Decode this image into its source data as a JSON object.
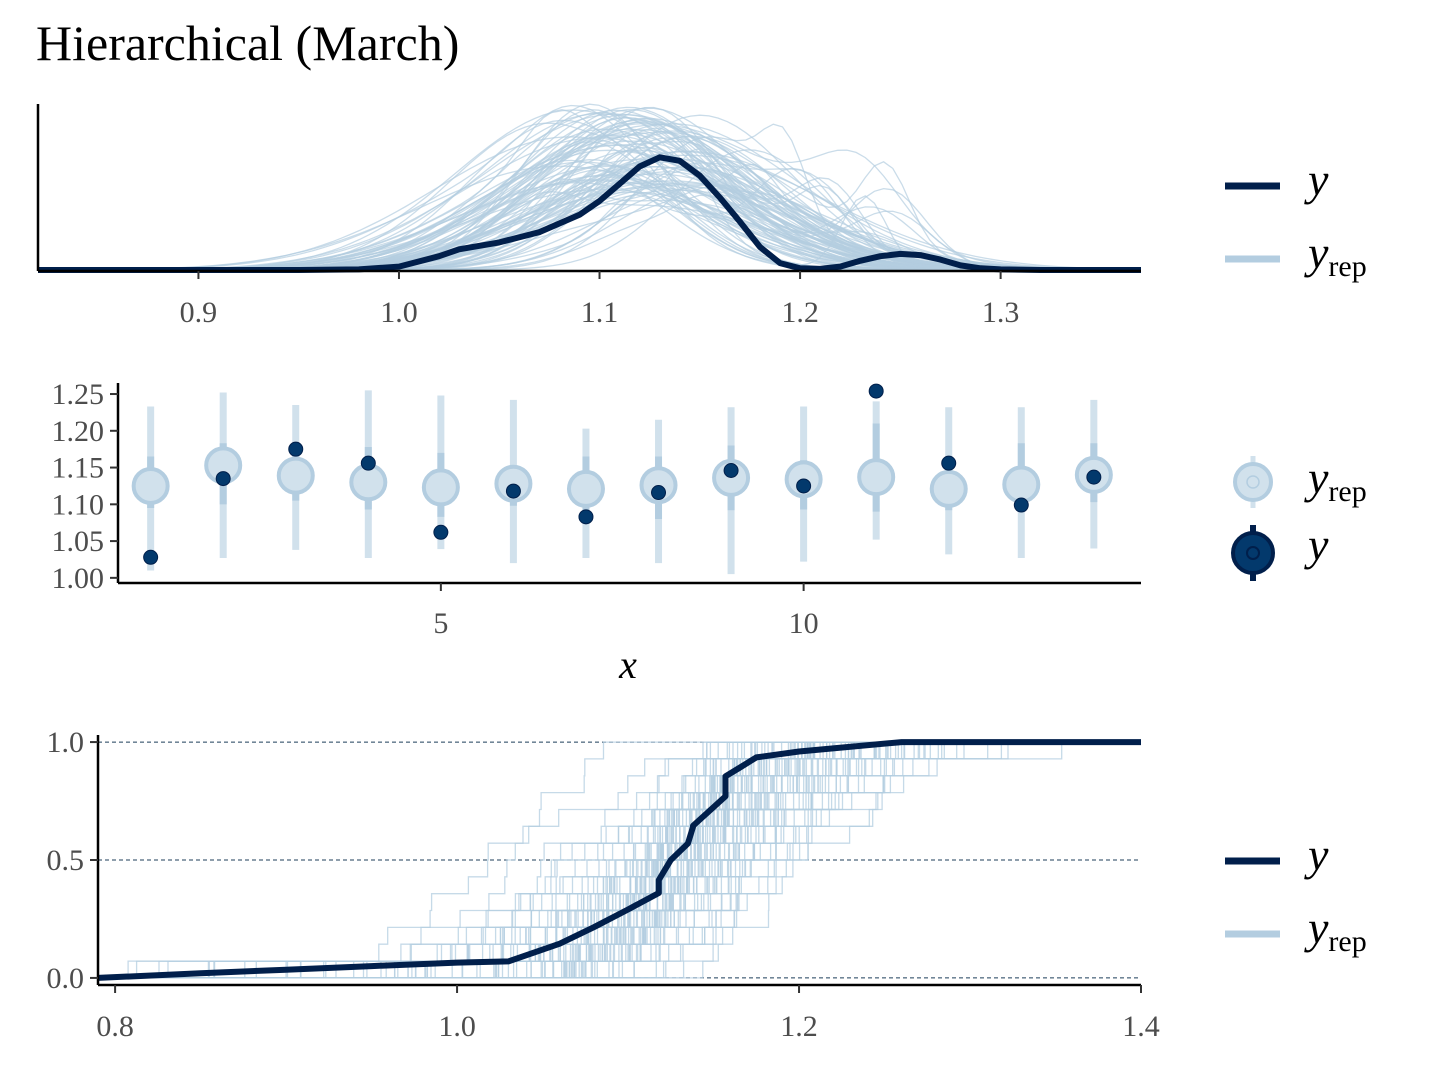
{
  "title": "Hierarchical (March)",
  "colors": {
    "y": "#011f4b",
    "yrep": "#b3cde0",
    "yrep_light": "#d1e1ec",
    "y_point": "#03396c",
    "y_point_edge": "#011f4b"
  },
  "legend": {
    "y_label": "y",
    "yrep_main": "y",
    "yrep_sub": "rep"
  },
  "chart_data": [
    {
      "type": "line",
      "name": "density-overlay",
      "xlim": [
        0.82,
        1.37
      ],
      "xticks": [
        "0.9",
        "1.0",
        "1.1",
        "1.2",
        "1.3"
      ],
      "xtick_values": [
        0.9,
        1.0,
        1.1,
        1.2,
        1.3
      ],
      "y_axis_labels": false,
      "n_replicates": 100,
      "y_density": {
        "x": [
          0.82,
          0.85,
          0.9,
          0.95,
          0.98,
          1.0,
          1.02,
          1.03,
          1.05,
          1.07,
          1.09,
          1.1,
          1.11,
          1.12,
          1.13,
          1.14,
          1.15,
          1.16,
          1.17,
          1.18,
          1.19,
          1.2,
          1.21,
          1.22,
          1.23,
          1.24,
          1.25,
          1.26,
          1.27,
          1.28,
          1.29,
          1.3,
          1.32,
          1.37
        ],
        "y": [
          0.0,
          0.0,
          0.0,
          0.0,
          0.005,
          0.03,
          0.12,
          0.18,
          0.24,
          0.33,
          0.48,
          0.6,
          0.75,
          0.9,
          0.98,
          0.95,
          0.82,
          0.63,
          0.42,
          0.2,
          0.06,
          0.015,
          0.01,
          0.03,
          0.08,
          0.12,
          0.14,
          0.13,
          0.09,
          0.04,
          0.015,
          0.005,
          0.0,
          0.0
        ]
      }
    },
    {
      "type": "scatter",
      "name": "intervals",
      "xlabel": "x",
      "xlim": [
        0.55,
        14.65
      ],
      "ylim": [
        0.993,
        1.265
      ],
      "xticks": [
        "5",
        "10"
      ],
      "xtick_values": [
        5,
        10
      ],
      "yticks": [
        "1.00",
        "1.05",
        "1.10",
        "1.15",
        "1.20",
        "1.25"
      ],
      "ytick_values": [
        1.0,
        1.05,
        1.1,
        1.15,
        1.2,
        1.25
      ],
      "x": [
        1,
        2,
        3,
        4,
        5,
        6,
        7,
        8,
        9,
        10,
        11,
        12,
        13,
        14
      ],
      "y_observed": [
        1.028,
        1.135,
        1.175,
        1.156,
        1.062,
        1.118,
        1.083,
        1.116,
        1.146,
        1.125,
        1.254,
        1.156,
        1.099,
        1.137
      ],
      "yrep_median": [
        1.125,
        1.153,
        1.139,
        1.13,
        1.123,
        1.128,
        1.121,
        1.126,
        1.136,
        1.134,
        1.137,
        1.121,
        1.127,
        1.14
      ],
      "yrep_inner": [
        [
          1.095,
          1.165
        ],
        [
          1.1,
          1.183
        ],
        [
          1.105,
          1.172
        ],
        [
          1.093,
          1.178
        ],
        [
          1.083,
          1.17
        ],
        [
          1.098,
          1.15
        ],
        [
          1.083,
          1.165
        ],
        [
          1.08,
          1.165
        ],
        [
          1.092,
          1.18
        ],
        [
          1.093,
          1.16
        ],
        [
          1.09,
          1.21
        ],
        [
          1.092,
          1.155
        ],
        [
          1.09,
          1.183
        ],
        [
          1.103,
          1.183
        ]
      ],
      "yrep_outer": [
        [
          1.01,
          1.233
        ],
        [
          1.027,
          1.252
        ],
        [
          1.038,
          1.235
        ],
        [
          1.027,
          1.255
        ],
        [
          1.039,
          1.248
        ],
        [
          1.02,
          1.242
        ],
        [
          1.027,
          1.203
        ],
        [
          1.02,
          1.215
        ],
        [
          1.005,
          1.232
        ],
        [
          1.022,
          1.233
        ],
        [
          1.052,
          1.24
        ],
        [
          1.032,
          1.232
        ],
        [
          1.027,
          1.232
        ],
        [
          1.04,
          1.242
        ]
      ]
    },
    {
      "type": "line",
      "name": "ecdf-overlay",
      "xlim": [
        0.79,
        1.4
      ],
      "ylim": [
        -0.03,
        1.03
      ],
      "xticks": [
        "0.8",
        "1.0",
        "1.2",
        "1.4"
      ],
      "xtick_values": [
        0.8,
        1.0,
        1.2,
        1.4
      ],
      "yticks": [
        "0.0",
        "0.5",
        "1.0"
      ],
      "ytick_values": [
        0.0,
        0.5,
        1.0
      ],
      "grid": "horizontal dashed",
      "n_replicates": 100,
      "y_ecdf": {
        "x": [
          0.79,
          0.85,
          0.9,
          0.95,
          1.0,
          1.03,
          1.06,
          1.08,
          1.1,
          1.118,
          1.118,
          1.125,
          1.135,
          1.138,
          1.138,
          1.157,
          1.157,
          1.165,
          1.175,
          1.2,
          1.26,
          1.3,
          1.4
        ],
        "y": [
          0.0,
          0.02,
          0.035,
          0.05,
          0.065,
          0.07,
          0.145,
          0.215,
          0.29,
          0.36,
          0.415,
          0.5,
          0.57,
          0.64,
          0.645,
          0.77,
          0.855,
          0.89,
          0.935,
          0.96,
          1.0,
          1.0,
          1.0
        ]
      }
    }
  ]
}
